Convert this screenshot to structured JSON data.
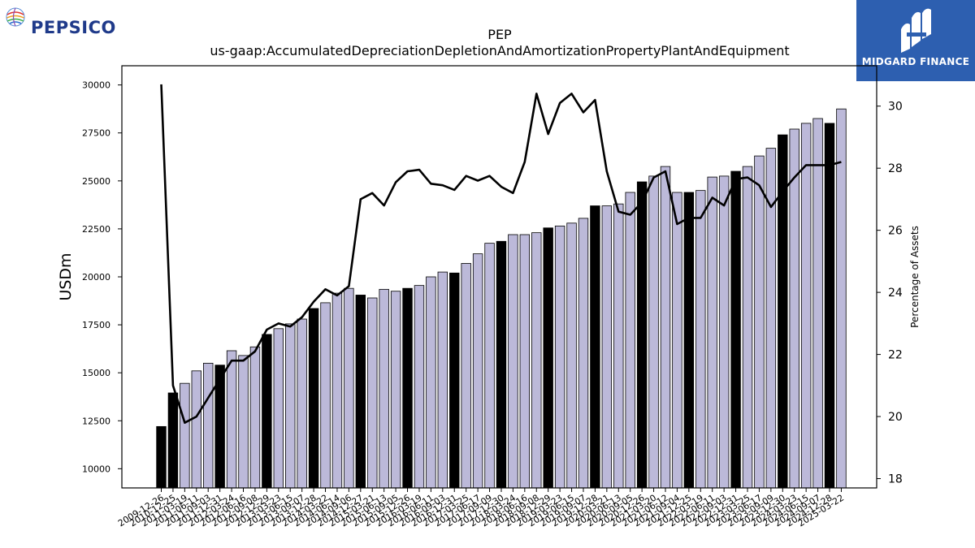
{
  "branding": {
    "left_logo_text": "PEPSICO",
    "right_logo_text": "MIDGARD FINANCE"
  },
  "chart_data": {
    "type": "bar",
    "title": "PEP",
    "subtitle": "us-gaap:AccumulatedDepreciationDepletionAndAmortizationPropertyPlantAndEquipment",
    "ylabel": "USDm",
    "y2label": "Percentage of Assets",
    "ylim": [
      9000,
      31000
    ],
    "y2lim": [
      17.7,
      31.3
    ],
    "yticks": [
      10000,
      12500,
      15000,
      17500,
      20000,
      22500,
      25000,
      27500,
      30000
    ],
    "y2ticks": [
      18,
      20,
      22,
      24,
      26,
      28,
      30
    ],
    "xtick_labels": [
      "2009-12-26",
      "2010-12-25",
      "2011-03-19",
      "2011-06-11",
      "2011-09-03",
      "2011-12-31",
      "2012-03-24",
      "2012-06-16",
      "2012-09-08",
      "2012-12-29",
      "2013-03-23",
      "2013-06-15",
      "2013-09-07",
      "2013-12-28",
      "2014-03-22",
      "2014-06-14",
      "2014-09-06",
      "2014-12-27",
      "2015-03-21",
      "2015-06-13",
      "2015-09-05",
      "2015-12-26",
      "2016-03-19",
      "2016-06-11",
      "2016-09-03",
      "2016-12-31",
      "2017-03-25",
      "2017-06-17",
      "2017-09-09",
      "2017-12-30",
      "2018-03-24",
      "2018-06-16",
      "2018-09-08",
      "2018-12-29",
      "2019-03-23",
      "2019-06-15",
      "2019-09-07",
      "2019-12-28",
      "2020-03-21",
      "2020-06-13",
      "2020-09-05",
      "2020-12-26",
      "2021-03-20",
      "2021-06-12",
      "2021-09-04",
      "2021-12-25",
      "2022-03-19",
      "2022-06-11",
      "2022-09-03",
      "2022-12-31",
      "2023-03-25",
      "2023-06-17",
      "2023-09-09",
      "2023-12-30",
      "2024-03-23",
      "2024-06-15",
      "2024-09-07",
      "2024-12-28",
      "2025-03-22"
    ],
    "series": [
      {
        "kind": "bar",
        "values": [
          12200,
          13950,
          14450,
          15100,
          15500,
          15400,
          16150,
          15900,
          16350,
          17000,
          17300,
          17550,
          17800,
          18350,
          18650,
          19150,
          19400,
          19050,
          18900,
          19350,
          19250,
          19400,
          19550,
          20000,
          20250,
          20200,
          20700,
          21200,
          21750,
          21850,
          22200,
          22200,
          22300,
          22550,
          22650,
          22800,
          23050,
          23700,
          23700,
          23800,
          24400,
          24950,
          25250,
          25750,
          24400,
          24400,
          24500,
          25200,
          25250,
          25500,
          25750,
          26300,
          26700,
          27400,
          27700,
          28000,
          28250,
          28000,
          28750
        ],
        "annual_color": "#000000",
        "quarterly_color": "#bcb9d9",
        "annual_indices": [
          0,
          1,
          5,
          9,
          13,
          17,
          21,
          25,
          29,
          33,
          37,
          41,
          45,
          49,
          53,
          57
        ]
      },
      {
        "kind": "line",
        "axis": "right",
        "color": "#000000",
        "values": [
          30.7,
          21.0,
          19.8,
          20.0,
          20.6,
          21.2,
          21.8,
          21.8,
          22.1,
          22.8,
          23.0,
          22.9,
          23.2,
          23.7,
          24.1,
          23.9,
          24.2,
          27.0,
          27.2,
          26.8,
          27.55,
          27.9,
          27.95,
          27.5,
          27.45,
          27.3,
          27.75,
          27.6,
          27.75,
          27.4,
          27.2,
          28.2,
          30.4,
          29.1,
          30.1,
          30.4,
          29.8,
          30.2,
          27.9,
          26.6,
          26.5,
          26.9,
          27.7,
          27.9,
          26.2,
          26.4,
          26.4,
          27.05,
          26.8,
          27.65,
          27.7,
          27.45,
          26.75,
          27.25,
          27.7,
          28.1,
          28.1,
          28.1,
          28.2
        ]
      }
    ],
    "grid": false
  }
}
